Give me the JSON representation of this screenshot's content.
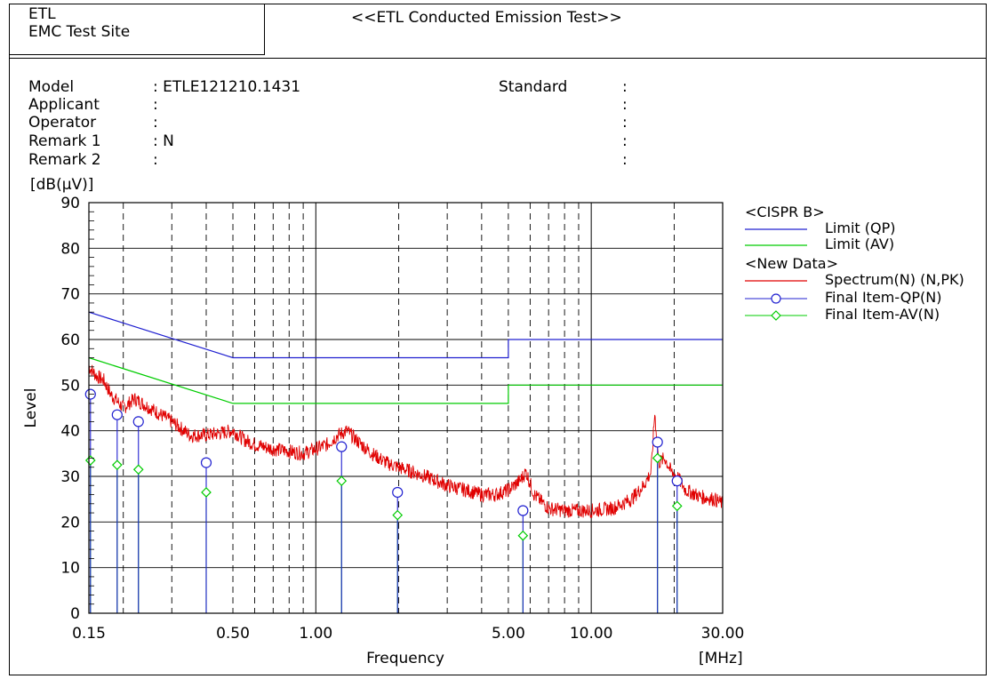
{
  "header": {
    "site_line1": "ETL",
    "site_line2": "EMC Test Site",
    "title": "<<ETL Conducted Emission Test>>"
  },
  "info": {
    "fields": [
      {
        "label": "Model",
        "value": ": ETLE121210.1431"
      },
      {
        "label": "Applicant",
        "value": ":"
      },
      {
        "label": "Operator",
        "value": ":"
      },
      {
        "label": "Remark 1",
        "value": ": N"
      },
      {
        "label": "Remark 2",
        "value": ":"
      }
    ],
    "standard_label": "Standard",
    "standard_colons": [
      ":",
      ":",
      ":",
      ":",
      ":"
    ]
  },
  "chart_data": {
    "type": "line",
    "ylabel": "Level",
    "yunit": "[dB(μV)]",
    "xlabel": "Frequency",
    "xunit": "[MHz]",
    "xscale": "log",
    "xlim": [
      0.15,
      30
    ],
    "ylim": [
      0,
      90
    ],
    "yticks": [
      0,
      10,
      20,
      30,
      40,
      50,
      60,
      70,
      80,
      90
    ],
    "xticks": [
      {
        "value": 0.15,
        "label": "0.15"
      },
      {
        "value": 0.5,
        "label": "0.50"
      },
      {
        "value": 1,
        "label": "1.00"
      },
      {
        "value": 5,
        "label": "5.00"
      },
      {
        "value": 10,
        "label": "10.00"
      },
      {
        "value": 30,
        "label": "30.00"
      }
    ],
    "grid": true,
    "legend_position": "right",
    "legend": {
      "group1": "<CISPR B>",
      "limit_qp": "Limit (QP)",
      "limit_av": "Limit (AV)",
      "group2": "<New Data>",
      "spectrum": "Spectrum(N) (N,PK)",
      "final_qp": "Final Item-QP(N)",
      "final_av": "Final Item-AV(N)"
    },
    "colors": {
      "limit_qp": "#2020d0",
      "limit_av": "#00cc00",
      "spectrum": "#e00000",
      "final_qp": "#2020d0",
      "final_av": "#00cc00"
    },
    "limits": {
      "qp": [
        [
          0.15,
          66
        ],
        [
          0.5,
          56
        ],
        [
          5,
          56
        ],
        [
          5,
          60
        ],
        [
          30,
          60
        ]
      ],
      "av": [
        [
          0.15,
          56
        ],
        [
          0.5,
          46
        ],
        [
          5,
          46
        ],
        [
          5,
          50
        ],
        [
          30,
          50
        ]
      ]
    },
    "spectrum_points": [
      [
        0.15,
        54
      ],
      [
        0.16,
        52
      ],
      [
        0.17,
        51
      ],
      [
        0.18,
        48
      ],
      [
        0.2,
        45
      ],
      [
        0.22,
        47
      ],
      [
        0.25,
        45
      ],
      [
        0.3,
        42
      ],
      [
        0.35,
        39
      ],
      [
        0.4,
        39
      ],
      [
        0.45,
        39.5
      ],
      [
        0.5,
        40
      ],
      [
        0.55,
        38
      ],
      [
        0.6,
        37
      ],
      [
        0.7,
        36
      ],
      [
        0.8,
        35.5
      ],
      [
        0.9,
        35
      ],
      [
        1.0,
        36
      ],
      [
        1.1,
        37
      ],
      [
        1.2,
        39
      ],
      [
        1.3,
        40
      ],
      [
        1.4,
        38
      ],
      [
        1.6,
        35
      ],
      [
        1.8,
        33
      ],
      [
        2.0,
        32
      ],
      [
        2.5,
        30
      ],
      [
        3.0,
        28
      ],
      [
        3.5,
        27
      ],
      [
        4.0,
        26
      ],
      [
        4.5,
        26
      ],
      [
        5.0,
        27
      ],
      [
        5.5,
        29
      ],
      [
        5.8,
        31
      ],
      [
        6.2,
        26
      ],
      [
        7.0,
        23
      ],
      [
        8.0,
        22.5
      ],
      [
        10.0,
        22.5
      ],
      [
        12.0,
        23
      ],
      [
        14.0,
        25
      ],
      [
        15.5,
        28
      ],
      [
        16.5,
        31
      ],
      [
        17.0,
        44
      ],
      [
        17.6,
        33
      ],
      [
        18.5,
        34
      ],
      [
        19.5,
        31
      ],
      [
        20.5,
        30
      ],
      [
        22.0,
        27
      ],
      [
        25.0,
        25.5
      ],
      [
        28.0,
        25
      ],
      [
        30.0,
        24
      ],
      [
        30.0,
        17
      ]
    ],
    "final_qp": [
      [
        0.152,
        48
      ],
      [
        0.19,
        43.5
      ],
      [
        0.227,
        42
      ],
      [
        0.4,
        33
      ],
      [
        1.24,
        36.5
      ],
      [
        1.98,
        26.5
      ],
      [
        5.65,
        22.5
      ],
      [
        17.4,
        37.5
      ],
      [
        20.5,
        29
      ]
    ],
    "final_av": [
      [
        0.152,
        33.5
      ],
      [
        0.19,
        32.5
      ],
      [
        0.227,
        31.5
      ],
      [
        0.4,
        26.5
      ],
      [
        1.24,
        29
      ],
      [
        1.98,
        21.5
      ],
      [
        5.65,
        17
      ],
      [
        17.4,
        34
      ],
      [
        20.5,
        23.5
      ]
    ]
  }
}
